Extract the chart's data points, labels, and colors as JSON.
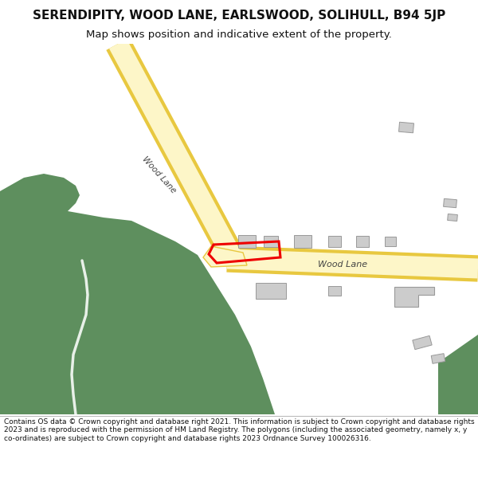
{
  "title": "SERENDIPITY, WOOD LANE, EARLSWOOD, SOLIHULL, B94 5JP",
  "subtitle": "Map shows position and indicative extent of the property.",
  "footer": "Contains OS data © Crown copyright and database right 2021. This information is subject to Crown copyright and database rights 2023 and is reproduced with the permission of HM Land Registry. The polygons (including the associated geometry, namely x, y co-ordinates) are subject to Crown copyright and database rights 2023 Ordnance Survey 100026316.",
  "bg_color": "#ffffff",
  "road_fill": "#fdf6c8",
  "road_edge": "#e8c840",
  "green_color": "#5e8f5e",
  "road_label_color": "#444444",
  "building_color": "#cccccc",
  "building_edge": "#999999",
  "plot_color": "#ee0000",
  "white_path_color": "#e8f0e8",
  "cyan_blob_color": "#a0d8d0"
}
